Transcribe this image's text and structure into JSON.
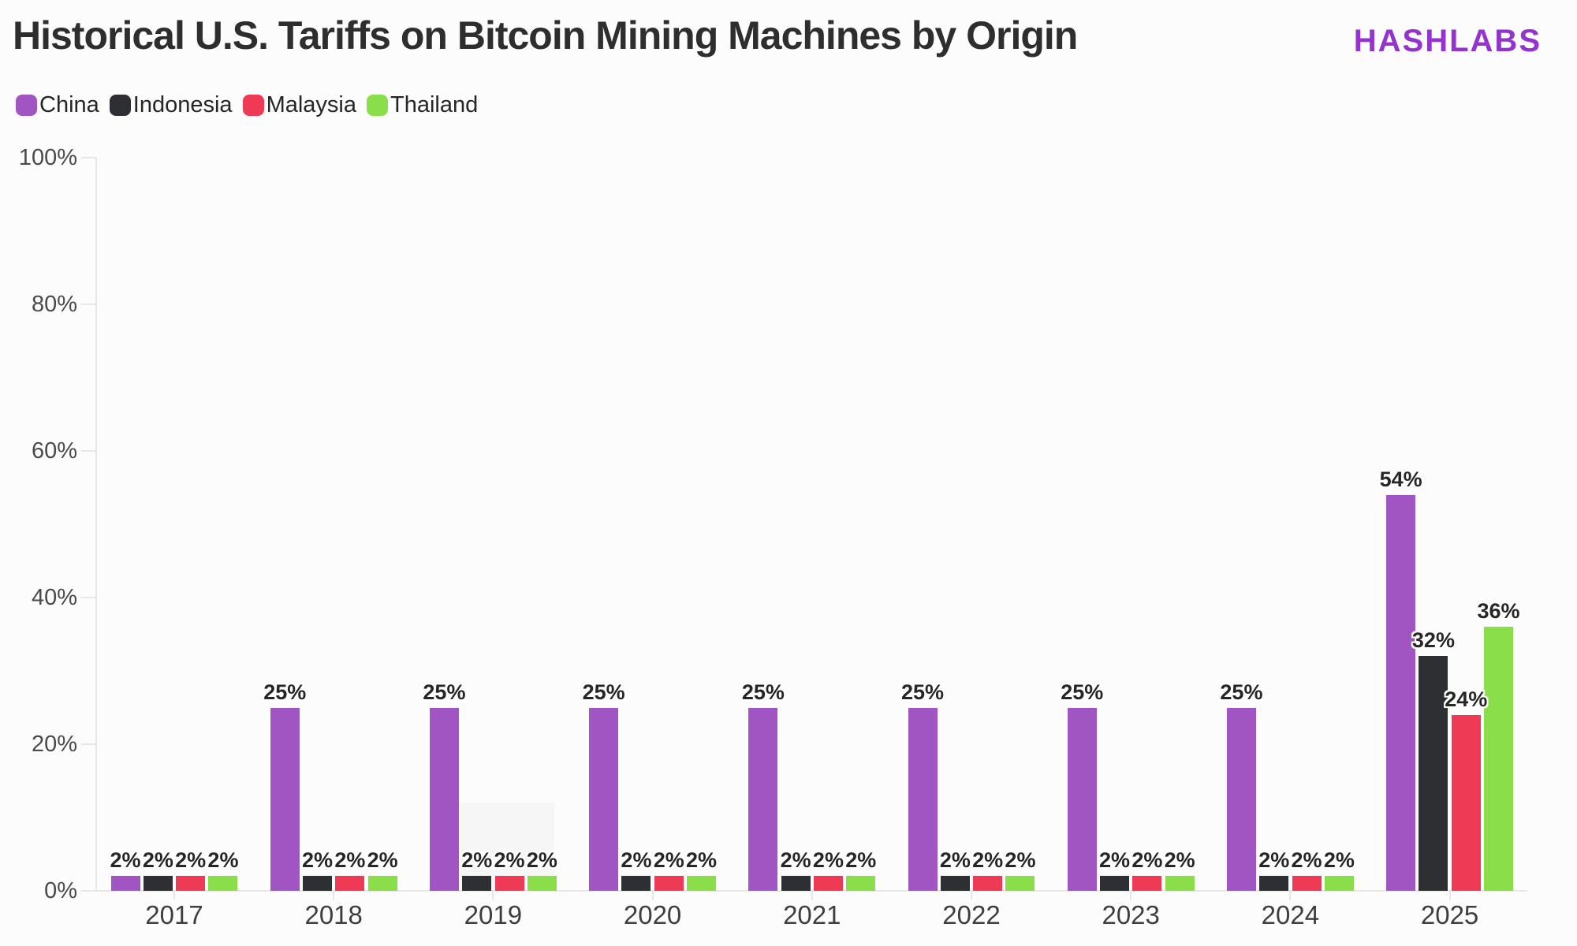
{
  "header": {
    "title": "Historical U.S. Tariffs on Bitcoin Mining Machines by Origin",
    "logo": "HASHLABS",
    "logo_color": "#9433cd"
  },
  "chart_data": {
    "type": "bar",
    "title": "Historical U.S. Tariffs on Bitcoin Mining Machines by Origin",
    "categories": [
      "2017",
      "2018",
      "2019",
      "2020",
      "2021",
      "2022",
      "2023",
      "2024",
      "2025"
    ],
    "series": [
      {
        "name": "China",
        "color": "#a055c3",
        "values": [
          2,
          25,
          25,
          25,
          25,
          25,
          25,
          25,
          54
        ]
      },
      {
        "name": "Indonesia",
        "color": "#2e2f33",
        "values": [
          2,
          2,
          2,
          2,
          2,
          2,
          2,
          2,
          32
        ]
      },
      {
        "name": "Malaysia",
        "color": "#ef3a55",
        "values": [
          2,
          2,
          2,
          2,
          2,
          2,
          2,
          2,
          24
        ]
      },
      {
        "name": "Thailand",
        "color": "#8ade4a",
        "values": [
          2,
          2,
          2,
          2,
          2,
          2,
          2,
          2,
          36
        ]
      }
    ],
    "xlabel": "",
    "ylabel": "",
    "ylim": [
      0,
      100
    ],
    "ytick_labels": [
      "0%",
      "20%",
      "40%",
      "60%",
      "80%",
      "100%"
    ],
    "value_label_suffix": "%",
    "legend_position": "top-left",
    "grid": false
  }
}
